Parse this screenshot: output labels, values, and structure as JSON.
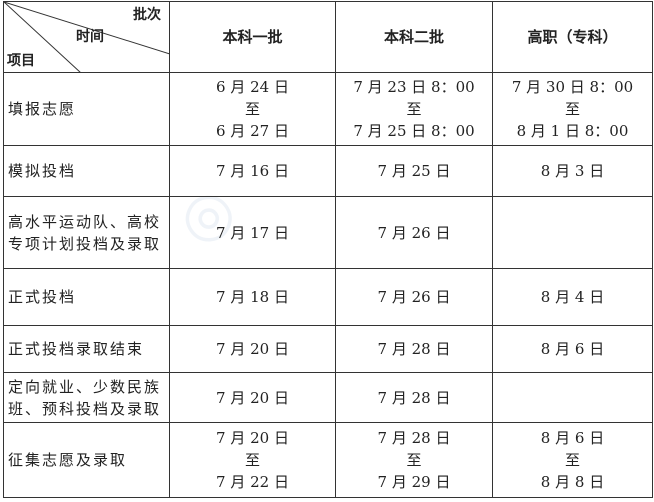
{
  "header": {
    "corner": {
      "batch": "批次",
      "time": "时间",
      "item": "项目"
    },
    "columns": [
      "本科一批",
      "本科二批",
      "高职（专科）"
    ]
  },
  "rows": [
    {
      "item": [
        "填报志愿"
      ],
      "cells": [
        [
          "6 月 24 日",
          "至",
          "6 月 27 日"
        ],
        [
          "7 月 23 日 8：00",
          "至",
          "7 月 25 日 8：00"
        ],
        [
          "7 月 30 日 8：00",
          "至",
          "8 月 1 日 8：00"
        ]
      ]
    },
    {
      "item": [
        "模拟投档"
      ],
      "cells": [
        [
          "7 月 16 日"
        ],
        [
          "7 月 25 日"
        ],
        [
          "8 月 3 日"
        ]
      ]
    },
    {
      "item": [
        "高水平运动队、高校",
        "专项计划投档及录取"
      ],
      "cells": [
        [
          "7 月 17 日"
        ],
        [
          "7 月 26 日"
        ],
        []
      ]
    },
    {
      "item": [
        "正式投档"
      ],
      "cells": [
        [
          "7 月 18 日"
        ],
        [
          "7 月 26 日"
        ],
        [
          "8 月 4 日"
        ]
      ]
    },
    {
      "item": [
        "正式投档录取结束"
      ],
      "cells": [
        [
          "7 月 20 日"
        ],
        [
          "7 月 28 日"
        ],
        [
          "8 月 6 日"
        ]
      ]
    },
    {
      "item": [
        "定向就业、少数民族",
        "班、预科投档及录取"
      ],
      "cells": [
        [
          "7 月 20 日"
        ],
        [
          "7 月 28 日"
        ],
        []
      ]
    },
    {
      "item": [
        "征集志愿及录取"
      ],
      "cells": [
        [
          "7 月 20 日",
          "至",
          "7 月 22 日"
        ],
        [
          "7 月 28 日",
          "至",
          "7 月 29 日"
        ],
        [
          "8 月 6 日",
          "至",
          "8 月 8 日"
        ]
      ]
    }
  ]
}
